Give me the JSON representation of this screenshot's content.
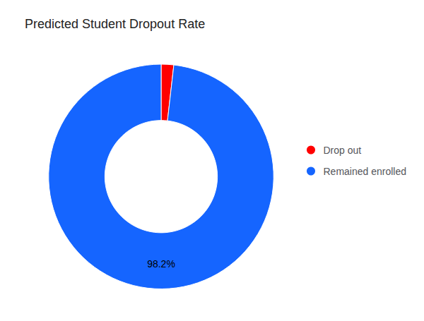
{
  "chart_data": {
    "type": "pie",
    "title": "Predicted Student Dropout Rate",
    "categories": [
      "Drop out",
      "Remained enrolled"
    ],
    "values": [
      1.8,
      98.2
    ],
    "colors": [
      "#FF0000",
      "#1565FF"
    ],
    "annotations": [
      "98.2%"
    ],
    "legend": "right"
  }
}
